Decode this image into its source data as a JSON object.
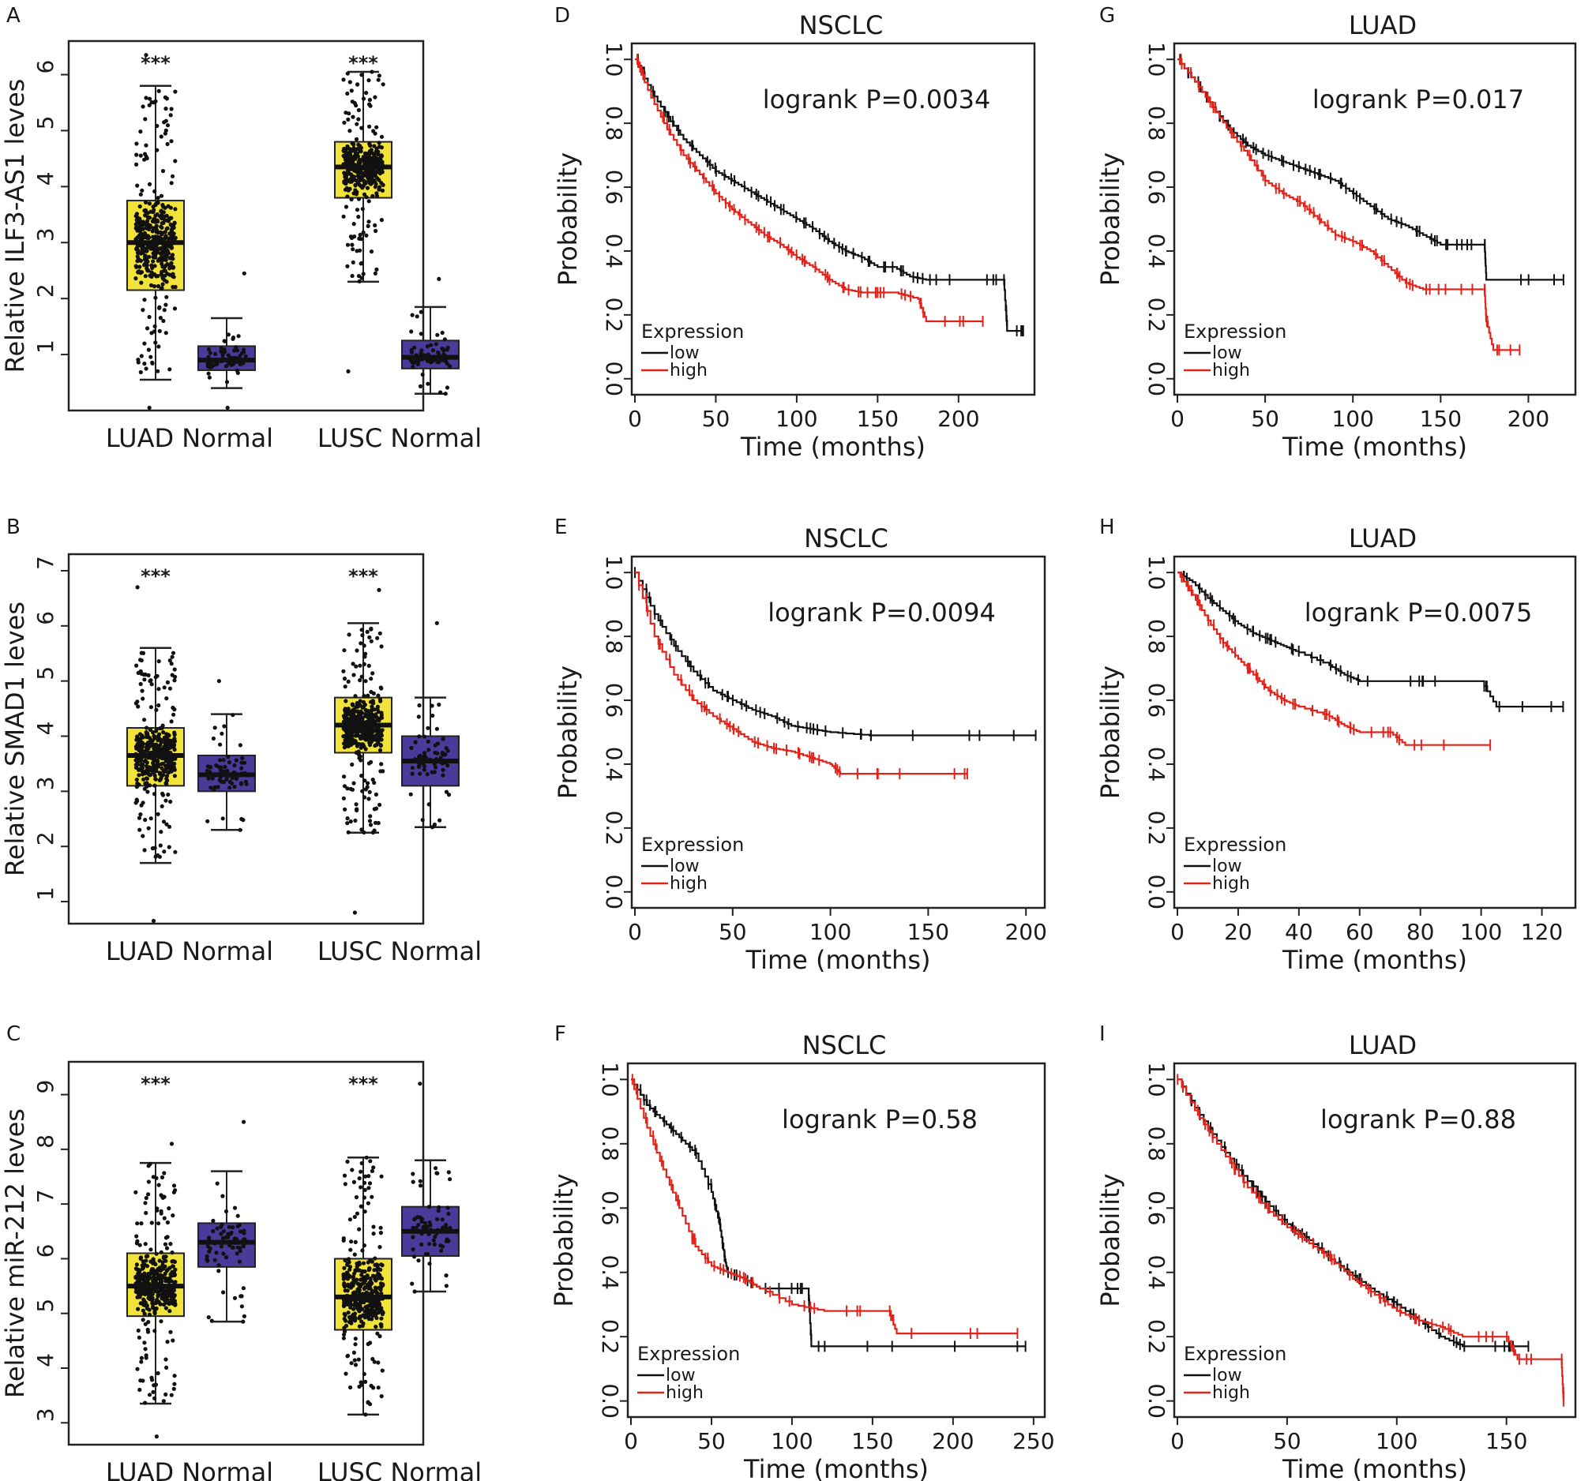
{
  "chart_data": [
    {
      "id": "A",
      "type": "box",
      "panel_label": "A",
      "ylabel": "Relative ILF3-AS1 leves",
      "ylim": [
        0,
        6.6
      ],
      "yticks": [
        1,
        2,
        3,
        4,
        5,
        6
      ],
      "categories": [
        "LUAD",
        "Normal",
        "LUSC",
        "Normal"
      ],
      "group_labels": [
        "LUAD Normal",
        "LUSC Normal"
      ],
      "significance": [
        "***",
        "***"
      ],
      "boxes": [
        {
          "name": "LUAD",
          "color": "#f2e33b",
          "min": 0.55,
          "q1": 2.15,
          "median": 3.0,
          "q3": 3.75,
          "max": 5.8,
          "dmin": 0.05,
          "dmax": 6.35
        },
        {
          "name": "Normal",
          "color": "#4a3a9a",
          "min": 0.4,
          "q1": 0.72,
          "median": 0.9,
          "q3": 1.15,
          "max": 1.65,
          "dmin": 0.05,
          "dmax": 2.45
        },
        {
          "name": "LUSC",
          "color": "#f2e33b",
          "min": 2.3,
          "q1": 3.8,
          "median": 4.35,
          "q3": 4.8,
          "max": 6.05,
          "dmin": 0.7,
          "dmax": 6.05
        },
        {
          "name": "Normal",
          "color": "#4a3a9a",
          "min": 0.3,
          "q1": 0.75,
          "median": 0.95,
          "q3": 1.25,
          "max": 1.85,
          "dmin": 0.3,
          "dmax": 2.35
        }
      ]
    },
    {
      "id": "B",
      "type": "box",
      "panel_label": "B",
      "ylabel": "Relative SMAD1 leves",
      "ylim": [
        0.6,
        7.3
      ],
      "yticks": [
        1,
        2,
        3,
        4,
        5,
        6,
        7
      ],
      "categories": [
        "LUAD",
        "Normal",
        "LUSC",
        "Normal"
      ],
      "group_labels": [
        "LUAD Normal",
        "LUSC Normal"
      ],
      "significance": [
        "***",
        "***"
      ],
      "boxes": [
        {
          "name": "LUAD",
          "color": "#f2e33b",
          "min": 1.7,
          "q1": 3.1,
          "median": 3.65,
          "q3": 4.15,
          "max": 5.6,
          "dmin": 0.65,
          "dmax": 6.7
        },
        {
          "name": "Normal",
          "color": "#4a3a9a",
          "min": 2.3,
          "q1": 3.0,
          "median": 3.3,
          "q3": 3.65,
          "max": 4.4,
          "dmin": 2.3,
          "dmax": 5.0
        },
        {
          "name": "LUSC",
          "color": "#f2e33b",
          "min": 2.25,
          "q1": 3.7,
          "median": 4.2,
          "q3": 4.7,
          "max": 6.05,
          "dmin": 0.8,
          "dmax": 6.65
        },
        {
          "name": "Normal",
          "color": "#4a3a9a",
          "min": 2.35,
          "q1": 3.1,
          "median": 3.55,
          "q3": 4.0,
          "max": 4.7,
          "dmin": 2.35,
          "dmax": 6.05
        }
      ]
    },
    {
      "id": "C",
      "type": "box",
      "panel_label": "C",
      "ylabel": "Relative miR-212 leves",
      "ylim": [
        2.6,
        9.6
      ],
      "yticks": [
        3,
        4,
        5,
        6,
        7,
        8,
        9
      ],
      "categories": [
        "LUAD",
        "Normal",
        "LUSC",
        "Normal"
      ],
      "group_labels": [
        "LUAD Normal",
        "LUSC Normal"
      ],
      "significance": [
        "***",
        "***"
      ],
      "boxes": [
        {
          "name": "LUAD",
          "color": "#f2e33b",
          "min": 3.35,
          "q1": 4.95,
          "median": 5.5,
          "q3": 6.1,
          "max": 7.75,
          "dmin": 2.75,
          "dmax": 8.1
        },
        {
          "name": "Normal",
          "color": "#4a3a9a",
          "min": 4.85,
          "q1": 5.85,
          "median": 6.3,
          "q3": 6.65,
          "max": 7.6,
          "dmin": 4.85,
          "dmax": 8.5
        },
        {
          "name": "LUSC",
          "color": "#f2e33b",
          "min": 3.15,
          "q1": 4.7,
          "median": 5.3,
          "q3": 6.0,
          "max": 7.85,
          "dmin": 3.15,
          "dmax": 7.85
        },
        {
          "name": "Normal",
          "color": "#4a3a9a",
          "min": 5.4,
          "q1": 6.05,
          "median": 6.5,
          "q3": 6.95,
          "max": 7.8,
          "dmin": 5.4,
          "dmax": 9.2
        }
      ]
    },
    {
      "id": "D",
      "type": "km",
      "panel_label": "D",
      "title": "NSCLC",
      "pvalue": "logrank P=0.0034",
      "xlabel": "Time (months)",
      "ylabel": "Probability",
      "xlim": [
        0,
        245
      ],
      "xticks": [
        0,
        50,
        100,
        150,
        200
      ],
      "ylim": [
        -0.05,
        1.05
      ],
      "yticks": [
        "0.0",
        "0.2",
        "0.4",
        "0.6",
        "0.8",
        "1.0"
      ],
      "legend": {
        "title": "Expression",
        "items": [
          "low",
          "high"
        ]
      },
      "series": [
        {
          "name": "low",
          "color": "#111111",
          "x": [
            0,
            10,
            20,
            30,
            40,
            50,
            60,
            70,
            80,
            90,
            100,
            110,
            120,
            130,
            140,
            150,
            160,
            170,
            180,
            200,
            228,
            230,
            240
          ],
          "y": [
            1.0,
            0.9,
            0.82,
            0.75,
            0.7,
            0.65,
            0.62,
            0.59,
            0.56,
            0.53,
            0.5,
            0.47,
            0.43,
            0.4,
            0.38,
            0.35,
            0.35,
            0.32,
            0.31,
            0.31,
            0.31,
            0.15,
            0.15
          ]
        },
        {
          "name": "high",
          "color": "#e2231a",
          "x": [
            0,
            10,
            20,
            30,
            40,
            50,
            60,
            70,
            80,
            90,
            100,
            110,
            120,
            130,
            140,
            150,
            160,
            175,
            180,
            215
          ],
          "y": [
            1.0,
            0.88,
            0.78,
            0.7,
            0.64,
            0.58,
            0.53,
            0.49,
            0.45,
            0.42,
            0.38,
            0.35,
            0.31,
            0.28,
            0.27,
            0.27,
            0.27,
            0.25,
            0.18,
            0.18
          ]
        }
      ]
    },
    {
      "id": "E",
      "type": "km",
      "panel_label": "E",
      "title": "NSCLC",
      "pvalue": "logrank P=0.0094",
      "xlabel": "Time (months)",
      "ylabel": "Probability",
      "xlim": [
        0,
        208
      ],
      "xticks": [
        0,
        50,
        100,
        150,
        200
      ],
      "ylim": [
        -0.05,
        1.05
      ],
      "yticks": [
        "0.0",
        "0.2",
        "0.4",
        "0.6",
        "0.8",
        "1.0"
      ],
      "legend": {
        "title": "Expression",
        "items": [
          "low",
          "high"
        ]
      },
      "series": [
        {
          "name": "low",
          "color": "#111111",
          "x": [
            0,
            10,
            20,
            30,
            40,
            50,
            60,
            70,
            80,
            90,
            100,
            120,
            150,
            205
          ],
          "y": [
            1.0,
            0.87,
            0.77,
            0.69,
            0.63,
            0.6,
            0.57,
            0.55,
            0.52,
            0.51,
            0.5,
            0.49,
            0.49,
            0.49
          ]
        },
        {
          "name": "high",
          "color": "#e2231a",
          "x": [
            0,
            10,
            20,
            30,
            40,
            50,
            60,
            70,
            80,
            90,
            100,
            105,
            130,
            170
          ],
          "y": [
            1.0,
            0.8,
            0.68,
            0.6,
            0.55,
            0.51,
            0.47,
            0.45,
            0.44,
            0.42,
            0.4,
            0.37,
            0.37,
            0.37
          ]
        }
      ]
    },
    {
      "id": "F",
      "type": "km",
      "panel_label": "F",
      "title": "NSCLC",
      "pvalue": "logrank P=0.58",
      "xlabel": "Time (months)",
      "ylabel": "Probability",
      "xlim": [
        0,
        255
      ],
      "xticks": [
        0,
        50,
        100,
        150,
        200,
        250
      ],
      "ylim": [
        -0.05,
        1.05
      ],
      "yticks": [
        "0.0",
        "0.2",
        "0.4",
        "0.6",
        "0.8",
        "1.0"
      ],
      "legend": {
        "title": "Expression",
        "items": [
          "low",
          "high"
        ]
      },
      "series": [
        {
          "name": "low",
          "color": "#111111",
          "x": [
            0,
            10,
            20,
            30,
            40,
            50,
            55,
            58,
            60,
            70,
            80,
            100,
            110,
            112,
            150,
            245
          ],
          "y": [
            1.0,
            0.92,
            0.87,
            0.82,
            0.77,
            0.65,
            0.55,
            0.45,
            0.4,
            0.38,
            0.35,
            0.35,
            0.35,
            0.17,
            0.17,
            0.17
          ]
        },
        {
          "name": "high",
          "color": "#e2231a",
          "x": [
            0,
            10,
            20,
            30,
            40,
            50,
            60,
            70,
            80,
            100,
            120,
            160,
            165,
            240
          ],
          "y": [
            1.0,
            0.85,
            0.72,
            0.6,
            0.48,
            0.42,
            0.4,
            0.38,
            0.35,
            0.3,
            0.28,
            0.28,
            0.21,
            0.21
          ]
        }
      ]
    },
    {
      "id": "G",
      "type": "km",
      "panel_label": "G",
      "title": "LUAD",
      "pvalue": "logrank P=0.017",
      "xlabel": "Time (months)",
      "ylabel": "Probability",
      "xlim": [
        0,
        225
      ],
      "xticks": [
        0,
        50,
        100,
        150,
        200
      ],
      "ylim": [
        -0.05,
        1.05
      ],
      "yticks": [
        "0.0",
        "0.2",
        "0.4",
        "0.6",
        "0.8",
        "1.0"
      ],
      "legend": {
        "title": "Expression",
        "items": [
          "low",
          "high"
        ]
      },
      "series": [
        {
          "name": "low",
          "color": "#111111",
          "x": [
            0,
            10,
            20,
            30,
            40,
            50,
            60,
            70,
            80,
            90,
            100,
            110,
            120,
            130,
            140,
            150,
            160,
            175,
            176,
            220
          ],
          "y": [
            1.0,
            0.93,
            0.85,
            0.78,
            0.73,
            0.7,
            0.68,
            0.66,
            0.64,
            0.62,
            0.58,
            0.54,
            0.5,
            0.48,
            0.45,
            0.42,
            0.42,
            0.42,
            0.31,
            0.31
          ]
        },
        {
          "name": "high",
          "color": "#e2231a",
          "x": [
            0,
            10,
            20,
            30,
            40,
            50,
            60,
            70,
            80,
            90,
            100,
            110,
            120,
            130,
            140,
            150,
            175,
            176,
            180,
            195
          ],
          "y": [
            1.0,
            0.93,
            0.85,
            0.77,
            0.7,
            0.62,
            0.58,
            0.55,
            0.5,
            0.45,
            0.43,
            0.4,
            0.35,
            0.3,
            0.28,
            0.28,
            0.28,
            0.18,
            0.09,
            0.09
          ]
        }
      ]
    },
    {
      "id": "H",
      "type": "km",
      "panel_label": "H",
      "title": "LUAD",
      "pvalue": "logrank P=0.0075",
      "xlabel": "Time (months)",
      "ylabel": "Probability",
      "xlim": [
        0,
        130
      ],
      "xticks": [
        0,
        20,
        40,
        60,
        80,
        100,
        120
      ],
      "ylim": [
        -0.05,
        1.05
      ],
      "yticks": [
        "0.0",
        "0.2",
        "0.4",
        "0.6",
        "0.8",
        "1.0"
      ],
      "legend": {
        "title": "Expression",
        "items": [
          "low",
          "high"
        ]
      },
      "series": [
        {
          "name": "low",
          "color": "#111111",
          "x": [
            0,
            5,
            10,
            15,
            20,
            25,
            30,
            35,
            40,
            50,
            55,
            60,
            80,
            100,
            105,
            127
          ],
          "y": [
            1.0,
            0.97,
            0.92,
            0.88,
            0.84,
            0.81,
            0.79,
            0.77,
            0.75,
            0.71,
            0.68,
            0.66,
            0.66,
            0.66,
            0.58,
            0.58
          ]
        },
        {
          "name": "high",
          "color": "#e2231a",
          "x": [
            0,
            5,
            10,
            15,
            20,
            25,
            30,
            35,
            40,
            50,
            55,
            60,
            70,
            75,
            103
          ],
          "y": [
            1.0,
            0.93,
            0.85,
            0.78,
            0.73,
            0.68,
            0.63,
            0.6,
            0.58,
            0.55,
            0.52,
            0.5,
            0.5,
            0.46,
            0.46
          ]
        }
      ]
    },
    {
      "id": "I",
      "type": "km",
      "panel_label": "I",
      "title": "LUAD",
      "pvalue": "logrank P=0.88",
      "xlabel": "Time (months)",
      "ylabel": "Probability",
      "xlim": [
        0,
        180
      ],
      "xticks": [
        0,
        50,
        100,
        150
      ],
      "ylim": [
        -0.05,
        1.05
      ],
      "yticks": [
        "0.0",
        "0.2",
        "0.4",
        "0.6",
        "0.8",
        "1.0"
      ],
      "legend": {
        "title": "Expression",
        "items": [
          "low",
          "high"
        ]
      },
      "series": [
        {
          "name": "low",
          "color": "#111111",
          "x": [
            0,
            10,
            20,
            30,
            40,
            50,
            60,
            70,
            80,
            90,
            100,
            110,
            120,
            130,
            150,
            160
          ],
          "y": [
            1.0,
            0.89,
            0.79,
            0.7,
            0.62,
            0.55,
            0.5,
            0.44,
            0.39,
            0.34,
            0.3,
            0.25,
            0.2,
            0.17,
            0.17,
            0.17
          ]
        },
        {
          "name": "high",
          "color": "#e2231a",
          "x": [
            0,
            10,
            20,
            30,
            40,
            50,
            60,
            70,
            80,
            90,
            100,
            110,
            120,
            130,
            150,
            155,
            175,
            176
          ],
          "y": [
            1.0,
            0.88,
            0.78,
            0.68,
            0.6,
            0.54,
            0.49,
            0.44,
            0.38,
            0.33,
            0.28,
            0.25,
            0.23,
            0.2,
            0.2,
            0.13,
            0.13,
            0.0
          ]
        }
      ]
    }
  ]
}
